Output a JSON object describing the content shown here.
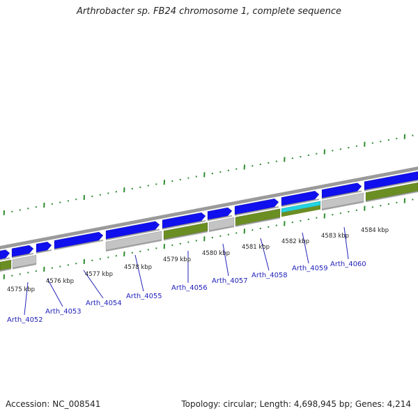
{
  "title": "Arthrobacter sp. FB24 chromosome 1, complete sequence",
  "footer": {
    "accession": "Accession: NC_008541",
    "summary": "Topology: circular; Length: 4,698,945 bp; Genes: 4,214"
  },
  "colors": {
    "forward_gene": "#1010ee",
    "reverse_gene": "#6b8e23",
    "gray_feature": "#c4c4c4",
    "highlight_feature": "#22d3e0",
    "backbone": "#9a9a9a",
    "tick": "#2e8b2e",
    "label": "#2222bb"
  },
  "scale_labels": [
    "4575 kbp",
    "4576 kbp",
    "4577 kbp",
    "4578 kbp",
    "4579 kbp",
    "4580 kbp",
    "4581 kbp",
    "4582 kbp",
    "4583 kbp",
    "4584 kbp"
  ],
  "gene_labels": [
    "Arth_4052",
    "Arth_4053",
    "Arth_4054",
    "Arth_4055",
    "Arth_4056",
    "Arth_4057",
    "Arth_4058",
    "Arth_4059",
    "Arth_4060"
  ]
}
